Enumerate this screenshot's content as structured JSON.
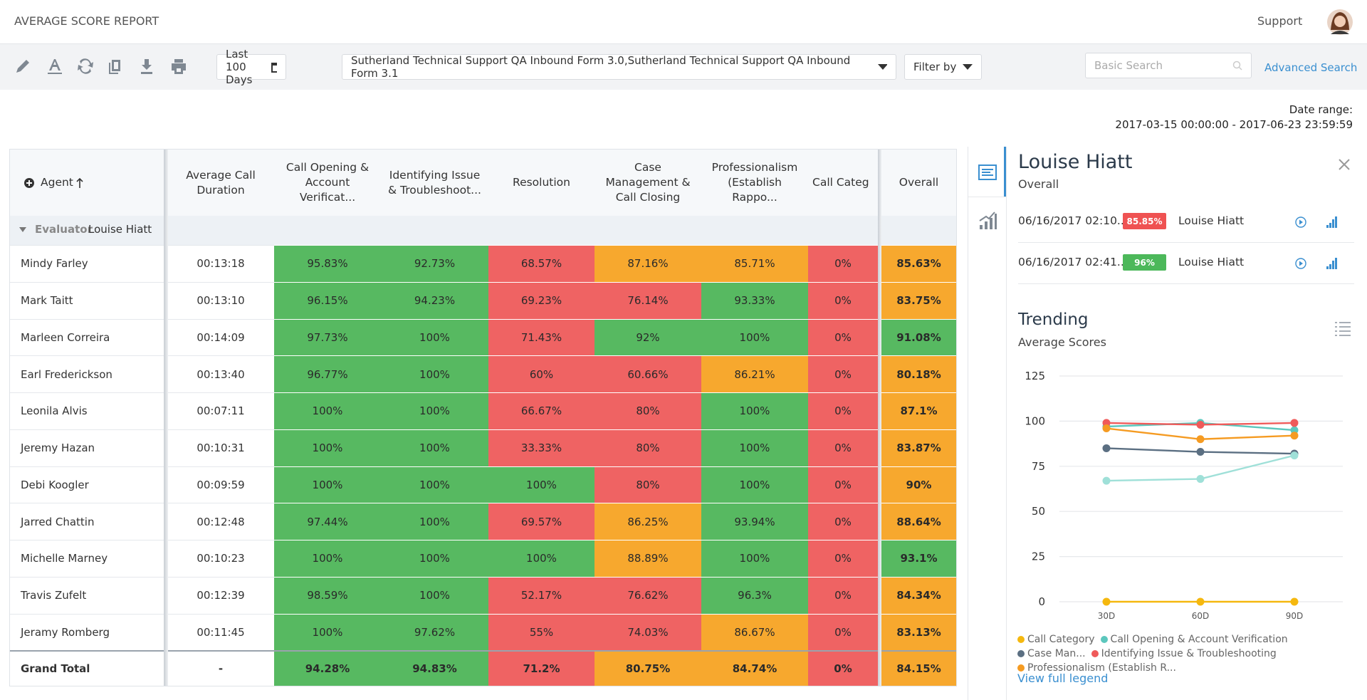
{
  "header": {
    "title": "AVERAGE SCORE REPORT",
    "support": "Support"
  },
  "toolbar": {
    "date_filter": "Last 100 Days",
    "forms": "Sutherland Technical Support QA Inbound Form 3.0,Sutherland Technical Support QA Inbound Form 3.1",
    "filter": "Filter by",
    "search_placeholder": "Basic Search",
    "advanced_search": "Advanced Search"
  },
  "date_range": {
    "label": "Date range:",
    "value": "2017-03-15 00:00:00 - 2017-06-23 23:59:59"
  },
  "table": {
    "columns": [
      "Agent",
      "Average Call Duration",
      "Call Opening & Account Verificat...",
      "Identifying Issue & Troubleshoot...",
      "Resolution",
      "Case Management & Call Closing",
      "Professionalism (Establish Rappo...",
      "Call Categ",
      "Overall"
    ],
    "group": {
      "label": "Evaluator",
      "value": "Louise Hiatt"
    },
    "rows": [
      [
        "Mindy Farley",
        "00:13:18",
        "95.83%",
        "92.73%",
        "68.57%",
        "87.16%",
        "85.71%",
        "0%",
        "85.63%"
      ],
      [
        "Mark Taitt",
        "00:13:10",
        "96.15%",
        "94.23%",
        "69.23%",
        "76.14%",
        "93.33%",
        "0%",
        "83.75%"
      ],
      [
        "Marleen Correira",
        "00:14:09",
        "97.73%",
        "100%",
        "71.43%",
        "92%",
        "100%",
        "0%",
        "91.08%"
      ],
      [
        "Earl Frederickson",
        "00:13:40",
        "96.77%",
        "100%",
        "60%",
        "60.66%",
        "86.21%",
        "0%",
        "80.18%"
      ],
      [
        "Leonila Alvis",
        "00:07:11",
        "100%",
        "100%",
        "66.67%",
        "80%",
        "100%",
        "0%",
        "87.1%"
      ],
      [
        "Jeremy Hazan",
        "00:10:31",
        "100%",
        "100%",
        "33.33%",
        "80%",
        "100%",
        "0%",
        "83.87%"
      ],
      [
        "Debi Koogler",
        "00:09:59",
        "100%",
        "100%",
        "100%",
        "80%",
        "100%",
        "0%",
        "90%"
      ],
      [
        "Jarred Chattin",
        "00:12:48",
        "97.44%",
        "100%",
        "69.57%",
        "86.25%",
        "93.94%",
        "0%",
        "88.64%"
      ],
      [
        "Michelle Marney",
        "00:10:23",
        "100%",
        "100%",
        "100%",
        "88.89%",
        "100%",
        "0%",
        "93.1%"
      ],
      [
        "Travis Zufelt",
        "00:12:39",
        "98.59%",
        "100%",
        "52.17%",
        "76.62%",
        "96.3%",
        "0%",
        "84.34%"
      ],
      [
        "Jeramy Romberg",
        "00:11:45",
        "100%",
        "97.62%",
        "55%",
        "74.03%",
        "86.67%",
        "0%",
        "83.13%"
      ]
    ],
    "total_row": [
      "Grand Total",
      "-",
      "94.28%",
      "94.83%",
      "71.2%",
      "80.75%",
      "84.74%",
      "0%",
      "84.15%"
    ],
    "color_scale": [
      {
        "upto": 80,
        "color": "#ef6363"
      },
      {
        "upto": 90,
        "color": "#f7a82e"
      },
      {
        "upto": 100,
        "color": "#57b961"
      }
    ]
  },
  "side_panel": {
    "name": "Louise Hiatt",
    "subtitle": "Overall",
    "evaluations": [
      {
        "date": "06/16/2017 02:10...",
        "score": "85.85%",
        "badge_color": "#ef5252",
        "evaluator": "Louise Hiatt"
      },
      {
        "date": "06/16/2017 02:41...",
        "score": "96%",
        "badge_color": "#4cb85a",
        "evaluator": "Louise Hiatt"
      }
    ],
    "view_full_legend": "View full legend"
  },
  "trending": {
    "type": "line",
    "title": "Trending",
    "subtitle": "Average Scores",
    "categories": [
      "30D",
      "60D",
      "90D"
    ],
    "ylim": [
      0,
      125
    ],
    "yticks": [
      0,
      25,
      50,
      75,
      100,
      125
    ],
    "grid": true,
    "series": [
      {
        "name": "Call Category",
        "color": "#f5b80f",
        "values": [
          0,
          0,
          0
        ]
      },
      {
        "name": "Call Opening & Account Verification",
        "color": "#5cc7bd",
        "values": [
          97,
          99,
          95
        ]
      },
      {
        "name": "Case Man...",
        "color": "#5b6f82",
        "values": [
          85,
          83,
          82
        ]
      },
      {
        "name": "Identifying Issue & Troubleshooting",
        "color": "#ef5a5a",
        "values": [
          99,
          98,
          99
        ]
      },
      {
        "name": "Professionalism (Establish R...",
        "color": "#f59b22",
        "values": [
          96,
          90,
          92
        ]
      },
      {
        "color": "#9fe0d8",
        "values": [
          67,
          68,
          81
        ]
      }
    ]
  }
}
